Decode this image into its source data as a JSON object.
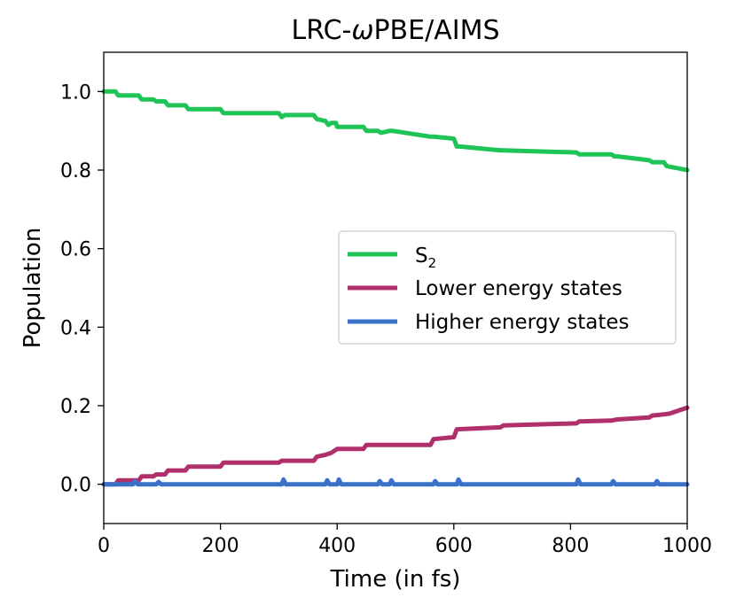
{
  "chart_data": {
    "type": "line",
    "title_prefix": "LRC-",
    "title_symbol": "ω",
    "title_suffix": "PBE/AIMS",
    "xlabel": "Time (in fs)",
    "ylabel": "Population",
    "xlim": [
      0,
      1000
    ],
    "ylim": [
      -0.1,
      1.1
    ],
    "xticks": [
      0,
      200,
      400,
      600,
      800,
      1000
    ],
    "yticks": [
      0.0,
      0.2,
      0.4,
      0.6,
      0.8,
      1.0
    ],
    "xtick_labels": [
      "0",
      "200",
      "400",
      "600",
      "800",
      "1000"
    ],
    "ytick_labels": [
      "0.0",
      "0.2",
      "0.4",
      "0.6",
      "0.8",
      "1.0"
    ],
    "legend_position": "center-right",
    "series": [
      {
        "name": "S",
        "name_sub": "2",
        "color": "#1fc457",
        "x": [
          0,
          20,
          25,
          60,
          65,
          85,
          90,
          105,
          110,
          140,
          145,
          200,
          205,
          300,
          305,
          310,
          360,
          365,
          380,
          385,
          390,
          398,
          400,
          445,
          450,
          470,
          475,
          490,
          495,
          560,
          565,
          600,
          605,
          610,
          680,
          685,
          810,
          815,
          870,
          875,
          880,
          935,
          940,
          960,
          965,
          1000
        ],
        "y": [
          1.0,
          1.0,
          0.99,
          0.99,
          0.98,
          0.98,
          0.975,
          0.975,
          0.965,
          0.965,
          0.955,
          0.955,
          0.945,
          0.945,
          0.935,
          0.94,
          0.94,
          0.93,
          0.925,
          0.915,
          0.92,
          0.92,
          0.91,
          0.91,
          0.9,
          0.9,
          0.895,
          0.9,
          0.9,
          0.885,
          0.885,
          0.88,
          0.86,
          0.86,
          0.85,
          0.85,
          0.845,
          0.84,
          0.84,
          0.835,
          0.835,
          0.825,
          0.82,
          0.82,
          0.81,
          0.8
        ]
      },
      {
        "name": "Lower energy states",
        "color": "#b0306b",
        "x": [
          0,
          20,
          25,
          60,
          65,
          85,
          90,
          105,
          110,
          140,
          145,
          200,
          205,
          300,
          305,
          360,
          365,
          380,
          390,
          400,
          445,
          450,
          560,
          565,
          600,
          605,
          680,
          685,
          810,
          815,
          870,
          880,
          935,
          940,
          960,
          970,
          980,
          990,
          1000
        ],
        "y": [
          0.0,
          0.0,
          0.01,
          0.01,
          0.02,
          0.02,
          0.025,
          0.025,
          0.035,
          0.035,
          0.045,
          0.045,
          0.055,
          0.055,
          0.06,
          0.06,
          0.07,
          0.075,
          0.08,
          0.09,
          0.09,
          0.1,
          0.1,
          0.115,
          0.12,
          0.14,
          0.145,
          0.15,
          0.155,
          0.16,
          0.162,
          0.165,
          0.17,
          0.175,
          0.178,
          0.18,
          0.185,
          0.19,
          0.195
        ]
      },
      {
        "name": "Higher energy states",
        "color": "#3b72c8",
        "x": [
          0,
          50,
          54,
          58,
          90,
          94,
          98,
          305,
          308,
          312,
          380,
          383,
          387,
          400,
          403,
          407,
          470,
          473,
          477,
          490,
          493,
          497,
          565,
          568,
          572,
          605,
          608,
          612,
          810,
          813,
          817,
          870,
          873,
          877,
          945,
          948,
          952,
          1000
        ],
        "y": [
          0.0,
          0.0,
          0.008,
          0.0,
          0.0,
          0.006,
          0.0,
          0.0,
          0.012,
          0.0,
          0.0,
          0.01,
          0.0,
          0.0,
          0.012,
          0.0,
          0.0,
          0.008,
          0.0,
          0.0,
          0.01,
          0.0,
          0.0,
          0.008,
          0.0,
          0.0,
          0.012,
          0.0,
          0.0,
          0.012,
          0.0,
          0.0,
          0.008,
          0.0,
          0.0,
          0.008,
          0.0,
          0.0
        ]
      }
    ]
  }
}
